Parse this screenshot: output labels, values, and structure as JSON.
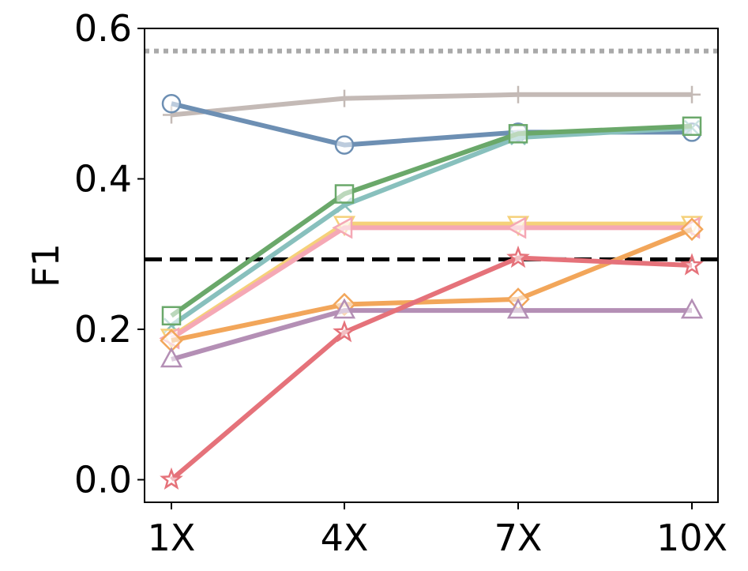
{
  "chart_data": {
    "type": "line",
    "title": "",
    "xlabel": "",
    "ylabel": "F1",
    "categories": [
      "1X",
      "4X",
      "7X",
      "10X"
    ],
    "ylim": [
      -0.03,
      0.6
    ],
    "yticks": [
      0.0,
      0.2,
      0.4,
      0.6
    ],
    "ytick_labels": [
      "0.0",
      "0.2",
      "0.4",
      "0.6"
    ],
    "grid": false,
    "legend": "none",
    "reference_lines": [
      {
        "value": 0.57,
        "style": "dotted",
        "color": "#a9a9a9"
      },
      {
        "value": 0.293,
        "style": "dashed",
        "color": "#000000"
      }
    ],
    "series": [
      {
        "marker": "plus",
        "color": "#c4bab6",
        "values": [
          0.485,
          0.507,
          0.512,
          0.512
        ]
      },
      {
        "marker": "circle",
        "color": "#6d8fb3",
        "values": [
          0.5,
          0.445,
          0.462,
          0.462
        ]
      },
      {
        "marker": "x",
        "color": "#88c0bd",
        "values": [
          0.205,
          0.365,
          0.455,
          0.468
        ]
      },
      {
        "marker": "square",
        "color": "#6aa86a",
        "values": [
          0.218,
          0.38,
          0.46,
          0.47
        ]
      },
      {
        "marker": "triangle-down",
        "color": "#f5d17a",
        "values": [
          0.19,
          0.34,
          0.34,
          0.34
        ]
      },
      {
        "marker": "triangle-left",
        "color": "#f5a8b5",
        "values": [
          0.188,
          0.335,
          0.335,
          0.335
        ]
      },
      {
        "marker": "diamond",
        "color": "#f2a65a",
        "values": [
          0.185,
          0.233,
          0.24,
          0.333
        ]
      },
      {
        "marker": "triangle-up",
        "color": "#b48fb5",
        "values": [
          0.16,
          0.225,
          0.225,
          0.225
        ]
      },
      {
        "marker": "star",
        "color": "#e5727a",
        "values": [
          0.0,
          0.196,
          0.295,
          0.285
        ]
      }
    ]
  }
}
